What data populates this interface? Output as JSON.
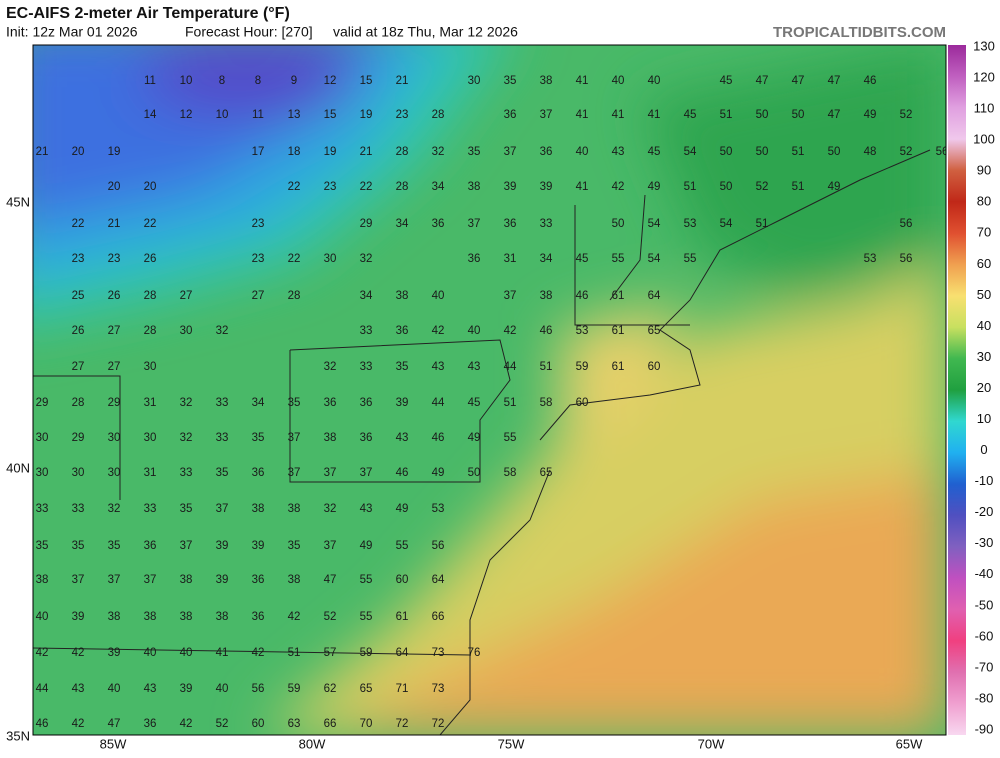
{
  "header": {
    "title": "EC-AIFS 2-meter Air Temperature (°F)",
    "init": "Init: 12z Mar 01 2026",
    "forecast_hour": "Forecast Hour: [270]",
    "valid": "valid at 18z Thu, Mar 12 2026",
    "site": "TROPICALTIDBITS.COM"
  },
  "map": {
    "lat_labels": [
      "45N",
      "40N",
      "35N"
    ],
    "lon_labels": [
      "85W",
      "80W",
      "75W",
      "70W",
      "65W"
    ],
    "colorbar_ticks": [
      130,
      120,
      110,
      100,
      90,
      80,
      70,
      60,
      50,
      40,
      30,
      20,
      10,
      0,
      -10,
      -20,
      -30,
      -40,
      -50,
      -60,
      -70,
      -80,
      -90
    ],
    "values": [
      [
        null,
        null,
        null,
        11,
        10,
        8,
        8,
        9,
        12,
        15,
        21,
        null,
        30,
        35,
        38,
        41,
        40,
        40,
        null,
        45,
        47,
        47,
        47,
        46,
        null,
        null
      ],
      [
        null,
        null,
        null,
        14,
        12,
        10,
        11,
        13,
        15,
        19,
        23,
        28,
        null,
        36,
        37,
        41,
        41,
        41,
        45,
        51,
        50,
        50,
        47,
        49,
        52,
        null
      ],
      [
        21,
        20,
        19,
        null,
        null,
        null,
        17,
        18,
        19,
        21,
        28,
        32,
        35,
        37,
        36,
        40,
        43,
        45,
        54,
        50,
        50,
        51,
        50,
        48,
        52,
        56
      ],
      [
        null,
        null,
        20,
        20,
        null,
        null,
        null,
        22,
        23,
        22,
        28,
        34,
        38,
        39,
        39,
        41,
        42,
        49,
        51,
        50,
        52,
        51,
        49,
        null,
        null,
        null
      ],
      [
        null,
        22,
        21,
        22,
        null,
        null,
        23,
        null,
        null,
        29,
        34,
        36,
        37,
        36,
        33,
        null,
        50,
        54,
        53,
        54,
        51,
        null,
        null,
        null,
        56,
        null
      ],
      [
        null,
        23,
        23,
        26,
        null,
        null,
        23,
        22,
        30,
        32,
        null,
        null,
        36,
        31,
        34,
        45,
        55,
        54,
        55,
        null,
        null,
        null,
        null,
        53,
        56,
        null
      ],
      [
        null,
        25,
        26,
        28,
        27,
        null,
        27,
        28,
        null,
        34,
        38,
        40,
        null,
        37,
        38,
        46,
        61,
        64
      ],
      [
        null,
        26,
        27,
        28,
        30,
        32,
        null,
        null,
        null,
        33,
        36,
        42,
        40,
        42,
        46,
        53,
        61,
        65
      ],
      [
        null,
        27,
        27,
        30,
        null,
        null,
        null,
        null,
        32,
        33,
        35,
        43,
        43,
        44,
        51,
        59,
        61,
        60
      ],
      [
        29,
        28,
        29,
        31,
        32,
        33,
        34,
        35,
        36,
        36,
        39,
        44,
        45,
        51,
        58,
        60
      ],
      [
        30,
        29,
        30,
        30,
        32,
        33,
        35,
        37,
        38,
        36,
        43,
        46,
        49,
        55
      ],
      [
        30,
        30,
        30,
        31,
        33,
        35,
        36,
        37,
        37,
        37,
        46,
        49,
        50,
        58,
        65
      ],
      [
        33,
        33,
        32,
        33,
        35,
        37,
        38,
        38,
        32,
        43,
        49,
        53
      ],
      [
        35,
        35,
        35,
        36,
        37,
        39,
        39,
        35,
        37,
        49,
        55,
        56
      ],
      [
        38,
        37,
        37,
        37,
        38,
        39,
        36,
        38,
        47,
        55,
        60,
        64
      ],
      [
        40,
        39,
        38,
        38,
        38,
        38,
        36,
        42,
        52,
        55,
        61,
        66
      ],
      [
        42,
        42,
        39,
        40,
        40,
        41,
        42,
        51,
        57,
        59,
        64,
        73,
        76
      ],
      [
        44,
        43,
        40,
        43,
        39,
        40,
        56,
        59,
        62,
        65,
        71,
        73
      ],
      [
        46,
        42,
        47,
        36,
        42,
        52,
        60,
        63,
        66,
        70,
        72,
        72
      ]
    ]
  }
}
